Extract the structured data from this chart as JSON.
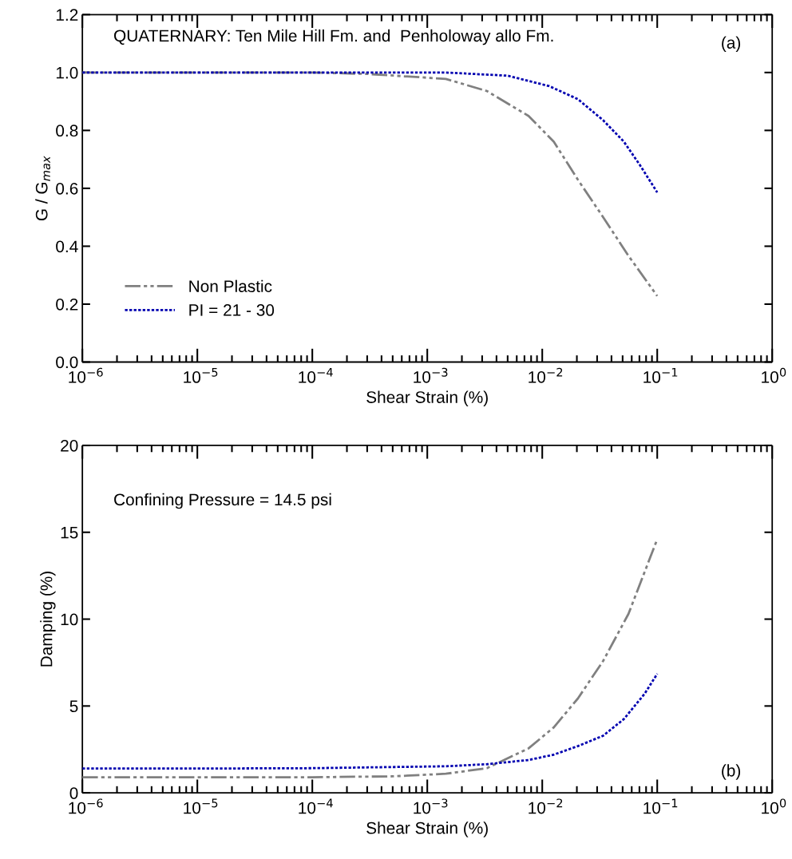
{
  "chart_data": [
    {
      "type": "line",
      "ylabel": "G / G$_{max}$",
      "xlabel": "Shear Strain (%)",
      "log": "x",
      "legend": "bottom left",
      "grid": false,
      "annotations": [
        "QUATERNARY: Ten Mile Hill Fm. and  Penholoway allo Fm.",
        "(a)"
      ],
      "xlim": [
        1e-06,
        1
      ],
      "ylim": [
        0,
        1.2
      ],
      "xticks": [
        {
          "value": 1e-06,
          "label": "10$^{−6}$"
        },
        {
          "value": 1e-05,
          "label": "10$^{−5}$"
        },
        {
          "value": 0.0001,
          "label": "10$^{−4}$"
        },
        {
          "value": 0.001,
          "label": "10$^{−3}$"
        },
        {
          "value": 0.01,
          "label": "10$^{−2}$"
        },
        {
          "value": 0.1,
          "label": "10$^{−1}$"
        },
        {
          "value": 1,
          "label": "10$^{0}$"
        }
      ],
      "yticks": [
        {
          "value": 0,
          "label": "0.0"
        },
        {
          "value": 0.2,
          "label": "0.2"
        },
        {
          "value": 0.4,
          "label": "0.4"
        },
        {
          "value": 0.6,
          "label": "0.6"
        },
        {
          "value": 0.8,
          "label": "0.8"
        },
        {
          "value": 1.0,
          "label": "1.0"
        },
        {
          "value": 1.2,
          "label": "1.2"
        }
      ],
      "series": [
        {
          "name": "Non Plastic",
          "color": "#808080",
          "line_style": "dashdot",
          "x": [
            1e-06,
            1e-05,
            0.0001,
            0.0003,
            0.00145,
            0.0033,
            0.0076,
            0.0126,
            0.0204,
            0.0339,
            0.0562,
            0.1
          ],
          "values": [
            1.0,
            1.0,
            1.0,
            0.995,
            0.978,
            0.936,
            0.85,
            0.761,
            0.63,
            0.5,
            0.367,
            0.228
          ]
        },
        {
          "name": "PI = 21 - 30",
          "color": "#0000b0",
          "line_style": "dotted",
          "x": [
            1e-06,
            1e-05,
            0.0001,
            0.00145,
            0.005,
            0.0115,
            0.0204,
            0.0339,
            0.0513,
            0.0708,
            0.1
          ],
          "values": [
            1.0,
            1.0,
            1.0,
            1.0,
            0.989,
            0.953,
            0.908,
            0.835,
            0.761,
            0.68,
            0.586
          ]
        }
      ]
    },
    {
      "type": "line",
      "ylabel": "Damping (%)",
      "xlabel": "Shear Strain (%)",
      "log": "x",
      "legend": false,
      "grid": false,
      "annotations": [
        "Confining Pressure = 14.5 psi",
        "(b)"
      ],
      "xlim": [
        1e-06,
        1
      ],
      "ylim": [
        0,
        20
      ],
      "xticks": [
        {
          "value": 1e-06,
          "label": "10$^{−6}$"
        },
        {
          "value": 1e-05,
          "label": "10$^{−5}$"
        },
        {
          "value": 0.0001,
          "label": "10$^{−4}$"
        },
        {
          "value": 0.001,
          "label": "10$^{−3}$"
        },
        {
          "value": 0.01,
          "label": "10$^{−2}$"
        },
        {
          "value": 0.1,
          "label": "10$^{−1}$"
        },
        {
          "value": 1,
          "label": "10$^{0}$"
        }
      ],
      "yticks": [
        0,
        5,
        10,
        15,
        20
      ],
      "series": [
        {
          "color": "#808080",
          "line_style": "dashdot",
          "x": [
            1e-06,
            1e-05,
            0.0001,
            0.0005,
            0.00145,
            0.0033,
            0.0076,
            0.0126,
            0.0204,
            0.0339,
            0.0562,
            0.1
          ],
          "values": [
            0.9,
            0.9,
            0.9,
            0.95,
            1.1,
            1.42,
            2.56,
            3.77,
            5.43,
            7.6,
            10.3,
            14.6
          ]
        },
        {
          "color": "#0000b0",
          "line_style": "dotted",
          "x": [
            1e-06,
            1e-05,
            0.0001,
            0.00145,
            0.0033,
            0.0076,
            0.0126,
            0.0204,
            0.0339,
            0.0513,
            0.0776,
            0.1
          ],
          "values": [
            1.4,
            1.4,
            1.42,
            1.53,
            1.65,
            1.89,
            2.2,
            2.69,
            3.29,
            4.25,
            5.7,
            6.85
          ]
        }
      ]
    }
  ]
}
